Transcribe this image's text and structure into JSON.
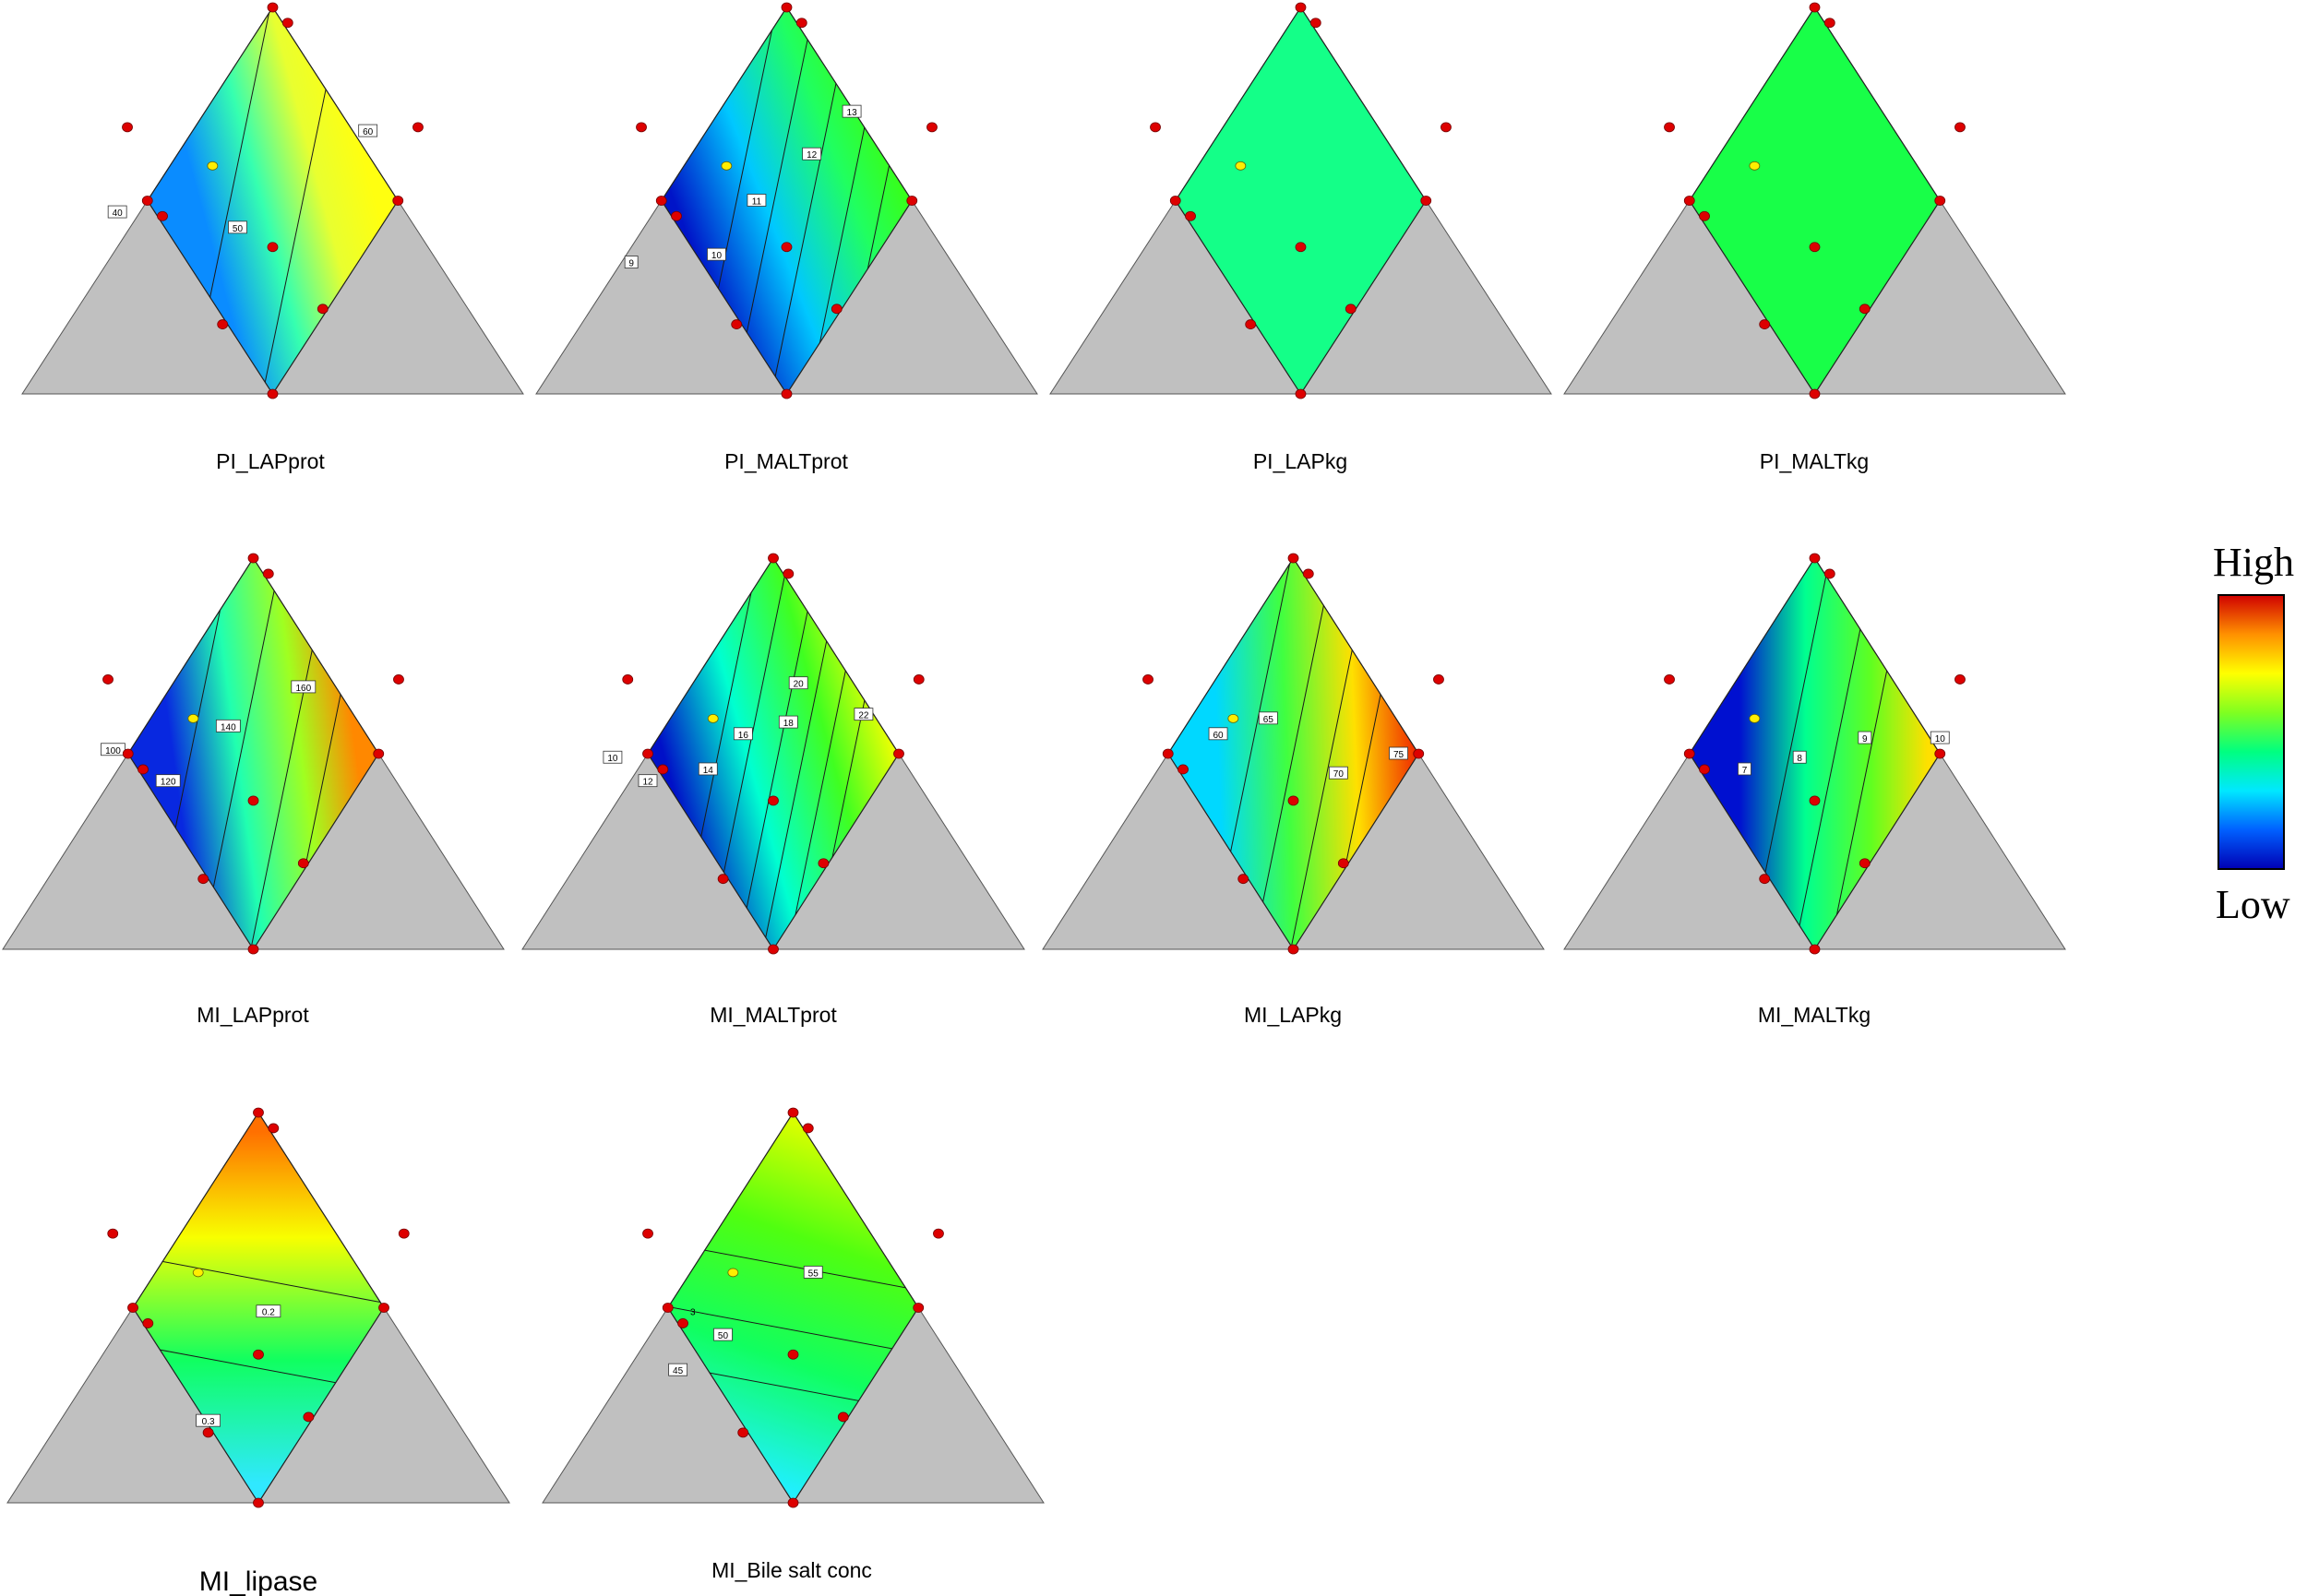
{
  "chart_data": {
    "type": "heatmap",
    "description_free": true,
    "legend": {
      "high_label": "High",
      "low_label": "Low",
      "colors": [
        "#0000b4",
        "#0060ff",
        "#00e8ff",
        "#00ff80",
        "#80ff20",
        "#ffff00",
        "#ff9000",
        "#d00000"
      ]
    },
    "surface_colors": {
      "background_triangle": "#c0c0c0",
      "design_point": "#dd0000",
      "center_point": "#ffee00"
    },
    "panels": [
      {
        "title": "PI_LAPprot",
        "contour_labels": [
          "40",
          "50",
          "60"
        ],
        "surface": "gradient",
        "colors": {
          "a": "#0a8cff",
          "b": "#35ffb0",
          "c": "#e8ff30",
          "d": "#ffff10"
        }
      },
      {
        "title": "PI_MALTprot",
        "contour_labels": [
          "9",
          "10",
          "11",
          "12",
          "13"
        ],
        "surface": "gradient",
        "colors": {
          "a": "#0014c8",
          "b": "#00c8ff",
          "c": "#20ff60",
          "d": "#40ff00"
        }
      },
      {
        "title": "PI_LAPkg",
        "contour_labels": [],
        "surface": "flat",
        "colors": {
          "flat": "#14ff88"
        }
      },
      {
        "title": "PI_MALTkg",
        "contour_labels": [],
        "surface": "flat",
        "colors": {
          "flat": "#18ff48"
        }
      },
      {
        "title": "MI_LAPprot",
        "contour_labels": [
          "100",
          "120",
          "140",
          "160"
        ],
        "surface": "gradient",
        "colors": {
          "a": "#0828e0",
          "b": "#20ffb0",
          "c": "#a0ff20",
          "d": "#ff8800"
        }
      },
      {
        "title": "MI_MALTprot",
        "contour_labels": [
          "10",
          "12",
          "14",
          "16",
          "18",
          "20",
          "22"
        ],
        "surface": "gradient",
        "colors": {
          "a": "#0010c8",
          "b": "#00ffd0",
          "c": "#40ff20",
          "d": "#ffff00"
        }
      },
      {
        "title": "MI_LAPkg",
        "contour_labels": [
          "60",
          "65",
          "70",
          "75"
        ],
        "surface": "gradient",
        "colors": {
          "a": "#00d8ff",
          "b": "#40ff40",
          "c": "#ffe000",
          "d": "#f03000"
        }
      },
      {
        "title": "MI_MALTkg",
        "contour_labels": [
          "7",
          "8",
          "9",
          "10"
        ],
        "surface": "gradient",
        "colors": {
          "a": "#0010d0",
          "b": "#00ff90",
          "c": "#60ff20",
          "d": "#ffe000"
        }
      },
      {
        "title": "MI_lipase",
        "contour_labels": [
          "0.3",
          "0.2"
        ],
        "surface": "gradient",
        "colors": {
          "a": "#30e8ff",
          "b": "#10ff60",
          "c": "#f8ff00",
          "d": "#ff7000"
        }
      },
      {
        "title": "MI_Bile salt conc",
        "contour_labels": [
          "3",
          "45",
          "50",
          "55"
        ],
        "surface": "gradient",
        "colors": {
          "a": "#20f0ff",
          "b": "#10ff60",
          "c": "#50ff10",
          "d": "#d8ff00"
        }
      }
    ]
  }
}
